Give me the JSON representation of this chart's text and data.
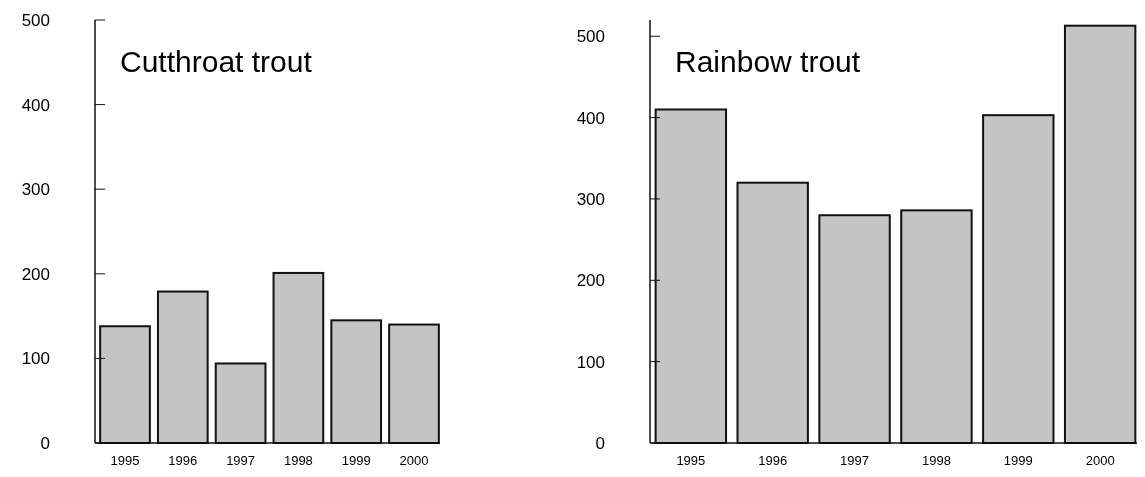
{
  "chart_data": [
    {
      "type": "bar",
      "title": "Cutthroat trout",
      "categories": [
        "1995",
        "1996",
        "1997",
        "1998",
        "1999",
        "2000"
      ],
      "values": [
        138,
        179,
        94,
        201,
        145,
        140
      ],
      "color": "#c4c4c4",
      "ylim": [
        0,
        500
      ],
      "yticks": [
        0,
        100,
        200,
        300,
        400,
        500
      ],
      "grid": false
    },
    {
      "type": "bar",
      "title": "Rainbow trout",
      "categories": [
        "1995",
        "1996",
        "1997",
        "1998",
        "1999",
        "2000"
      ],
      "values": [
        410,
        320,
        280,
        286,
        403,
        513
      ],
      "color": "#c4c4c4",
      "ylim": [
        0,
        520
      ],
      "yticks": [
        0,
        100,
        200,
        300,
        400,
        500
      ],
      "grid": false
    }
  ]
}
